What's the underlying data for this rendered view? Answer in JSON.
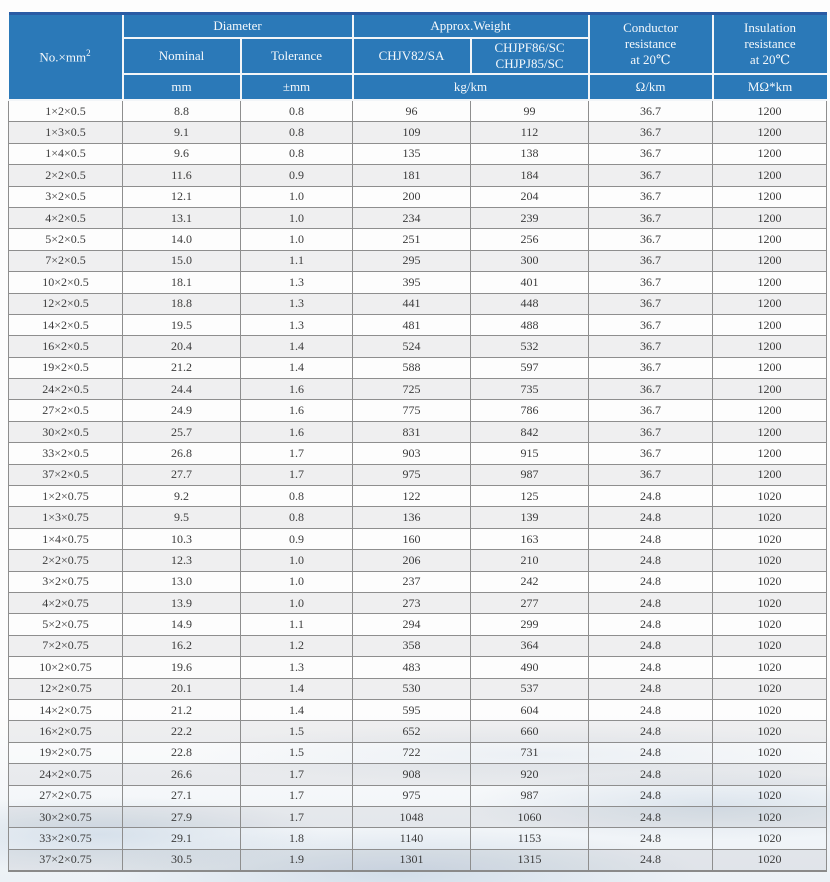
{
  "table": {
    "header": {
      "col_no_base": "No.×mm",
      "col_no_sup": "2",
      "diameter": "Diameter",
      "approx_weight": "Approx.Weight",
      "nominal": "Nominal",
      "tolerance": "Tolerance",
      "chjv": "CHJV82/SA",
      "chjpf": "CHJPF86/SC\nCHJPJ85/SC",
      "conductor": "Conductor\nresistance\nat 20℃",
      "insulation": "Insulation\nresistance\nat 20℃",
      "unit_mm": "mm",
      "unit_pmm": "±mm",
      "unit_kgkm": "kg/km",
      "unit_ohm": "Ω/km",
      "unit_mohm": "MΩ*km"
    },
    "rows": [
      [
        "1×2×0.5",
        "8.8",
        "0.8",
        "96",
        "99",
        "36.7",
        "1200"
      ],
      [
        "1×3×0.5",
        "9.1",
        "0.8",
        "109",
        "112",
        "36.7",
        "1200"
      ],
      [
        "1×4×0.5",
        "9.6",
        "0.8",
        "135",
        "138",
        "36.7",
        "1200"
      ],
      [
        "2×2×0.5",
        "11.6",
        "0.9",
        "181",
        "184",
        "36.7",
        "1200"
      ],
      [
        "3×2×0.5",
        "12.1",
        "1.0",
        "200",
        "204",
        "36.7",
        "1200"
      ],
      [
        "4×2×0.5",
        "13.1",
        "1.0",
        "234",
        "239",
        "36.7",
        "1200"
      ],
      [
        "5×2×0.5",
        "14.0",
        "1.0",
        "251",
        "256",
        "36.7",
        "1200"
      ],
      [
        "7×2×0.5",
        "15.0",
        "1.1",
        "295",
        "300",
        "36.7",
        "1200"
      ],
      [
        "10×2×0.5",
        "18.1",
        "1.3",
        "395",
        "401",
        "36.7",
        "1200"
      ],
      [
        "12×2×0.5",
        "18.8",
        "1.3",
        "441",
        "448",
        "36.7",
        "1200"
      ],
      [
        "14×2×0.5",
        "19.5",
        "1.3",
        "481",
        "488",
        "36.7",
        "1200"
      ],
      [
        "16×2×0.5",
        "20.4",
        "1.4",
        "524",
        "532",
        "36.7",
        "1200"
      ],
      [
        "19×2×0.5",
        "21.2",
        "1.4",
        "588",
        "597",
        "36.7",
        "1200"
      ],
      [
        "24×2×0.5",
        "24.4",
        "1.6",
        "725",
        "735",
        "36.7",
        "1200"
      ],
      [
        "27×2×0.5",
        "24.9",
        "1.6",
        "775",
        "786",
        "36.7",
        "1200"
      ],
      [
        "30×2×0.5",
        "25.7",
        "1.6",
        "831",
        "842",
        "36.7",
        "1200"
      ],
      [
        "33×2×0.5",
        "26.8",
        "1.7",
        "903",
        "915",
        "36.7",
        "1200"
      ],
      [
        "37×2×0.5",
        "27.7",
        "1.7",
        "975",
        "987",
        "36.7",
        "1200"
      ],
      [
        "1×2×0.75",
        "9.2",
        "0.8",
        "122",
        "125",
        "24.8",
        "1020"
      ],
      [
        "1×3×0.75",
        "9.5",
        "0.8",
        "136",
        "139",
        "24.8",
        "1020"
      ],
      [
        "1×4×0.75",
        "10.3",
        "0.9",
        "160",
        "163",
        "24.8",
        "1020"
      ],
      [
        "2×2×0.75",
        "12.3",
        "1.0",
        "206",
        "210",
        "24.8",
        "1020"
      ],
      [
        "3×2×0.75",
        "13.0",
        "1.0",
        "237",
        "242",
        "24.8",
        "1020"
      ],
      [
        "4×2×0.75",
        "13.9",
        "1.0",
        "273",
        "277",
        "24.8",
        "1020"
      ],
      [
        "5×2×0.75",
        "14.9",
        "1.1",
        "294",
        "299",
        "24.8",
        "1020"
      ],
      [
        "7×2×0.75",
        "16.2",
        "1.2",
        "358",
        "364",
        "24.8",
        "1020"
      ],
      [
        "10×2×0.75",
        "19.6",
        "1.3",
        "483",
        "490",
        "24.8",
        "1020"
      ],
      [
        "12×2×0.75",
        "20.1",
        "1.4",
        "530",
        "537",
        "24.8",
        "1020"
      ],
      [
        "14×2×0.75",
        "21.2",
        "1.4",
        "595",
        "604",
        "24.8",
        "1020"
      ],
      [
        "16×2×0.75",
        "22.2",
        "1.5",
        "652",
        "660",
        "24.8",
        "1020"
      ],
      [
        "19×2×0.75",
        "22.8",
        "1.5",
        "722",
        "731",
        "24.8",
        "1020"
      ],
      [
        "24×2×0.75",
        "26.6",
        "1.7",
        "908",
        "920",
        "24.8",
        "1020"
      ],
      [
        "27×2×0.75",
        "27.1",
        "1.7",
        "975",
        "987",
        "24.8",
        "1020"
      ],
      [
        "30×2×0.75",
        "27.9",
        "1.7",
        "1048",
        "1060",
        "24.8",
        "1020"
      ],
      [
        "33×2×0.75",
        "29.1",
        "1.8",
        "1140",
        "1153",
        "24.8",
        "1020"
      ],
      [
        "37×2×0.75",
        "30.5",
        "1.9",
        "1301",
        "1315",
        "24.8",
        "1020"
      ]
    ],
    "colors": {
      "header_blue": "#2b79b8",
      "top_border_navy": "#2a5ba4",
      "row_alt_gray": "#f1f1f1",
      "grid_gray": "#8e8e8e"
    }
  }
}
